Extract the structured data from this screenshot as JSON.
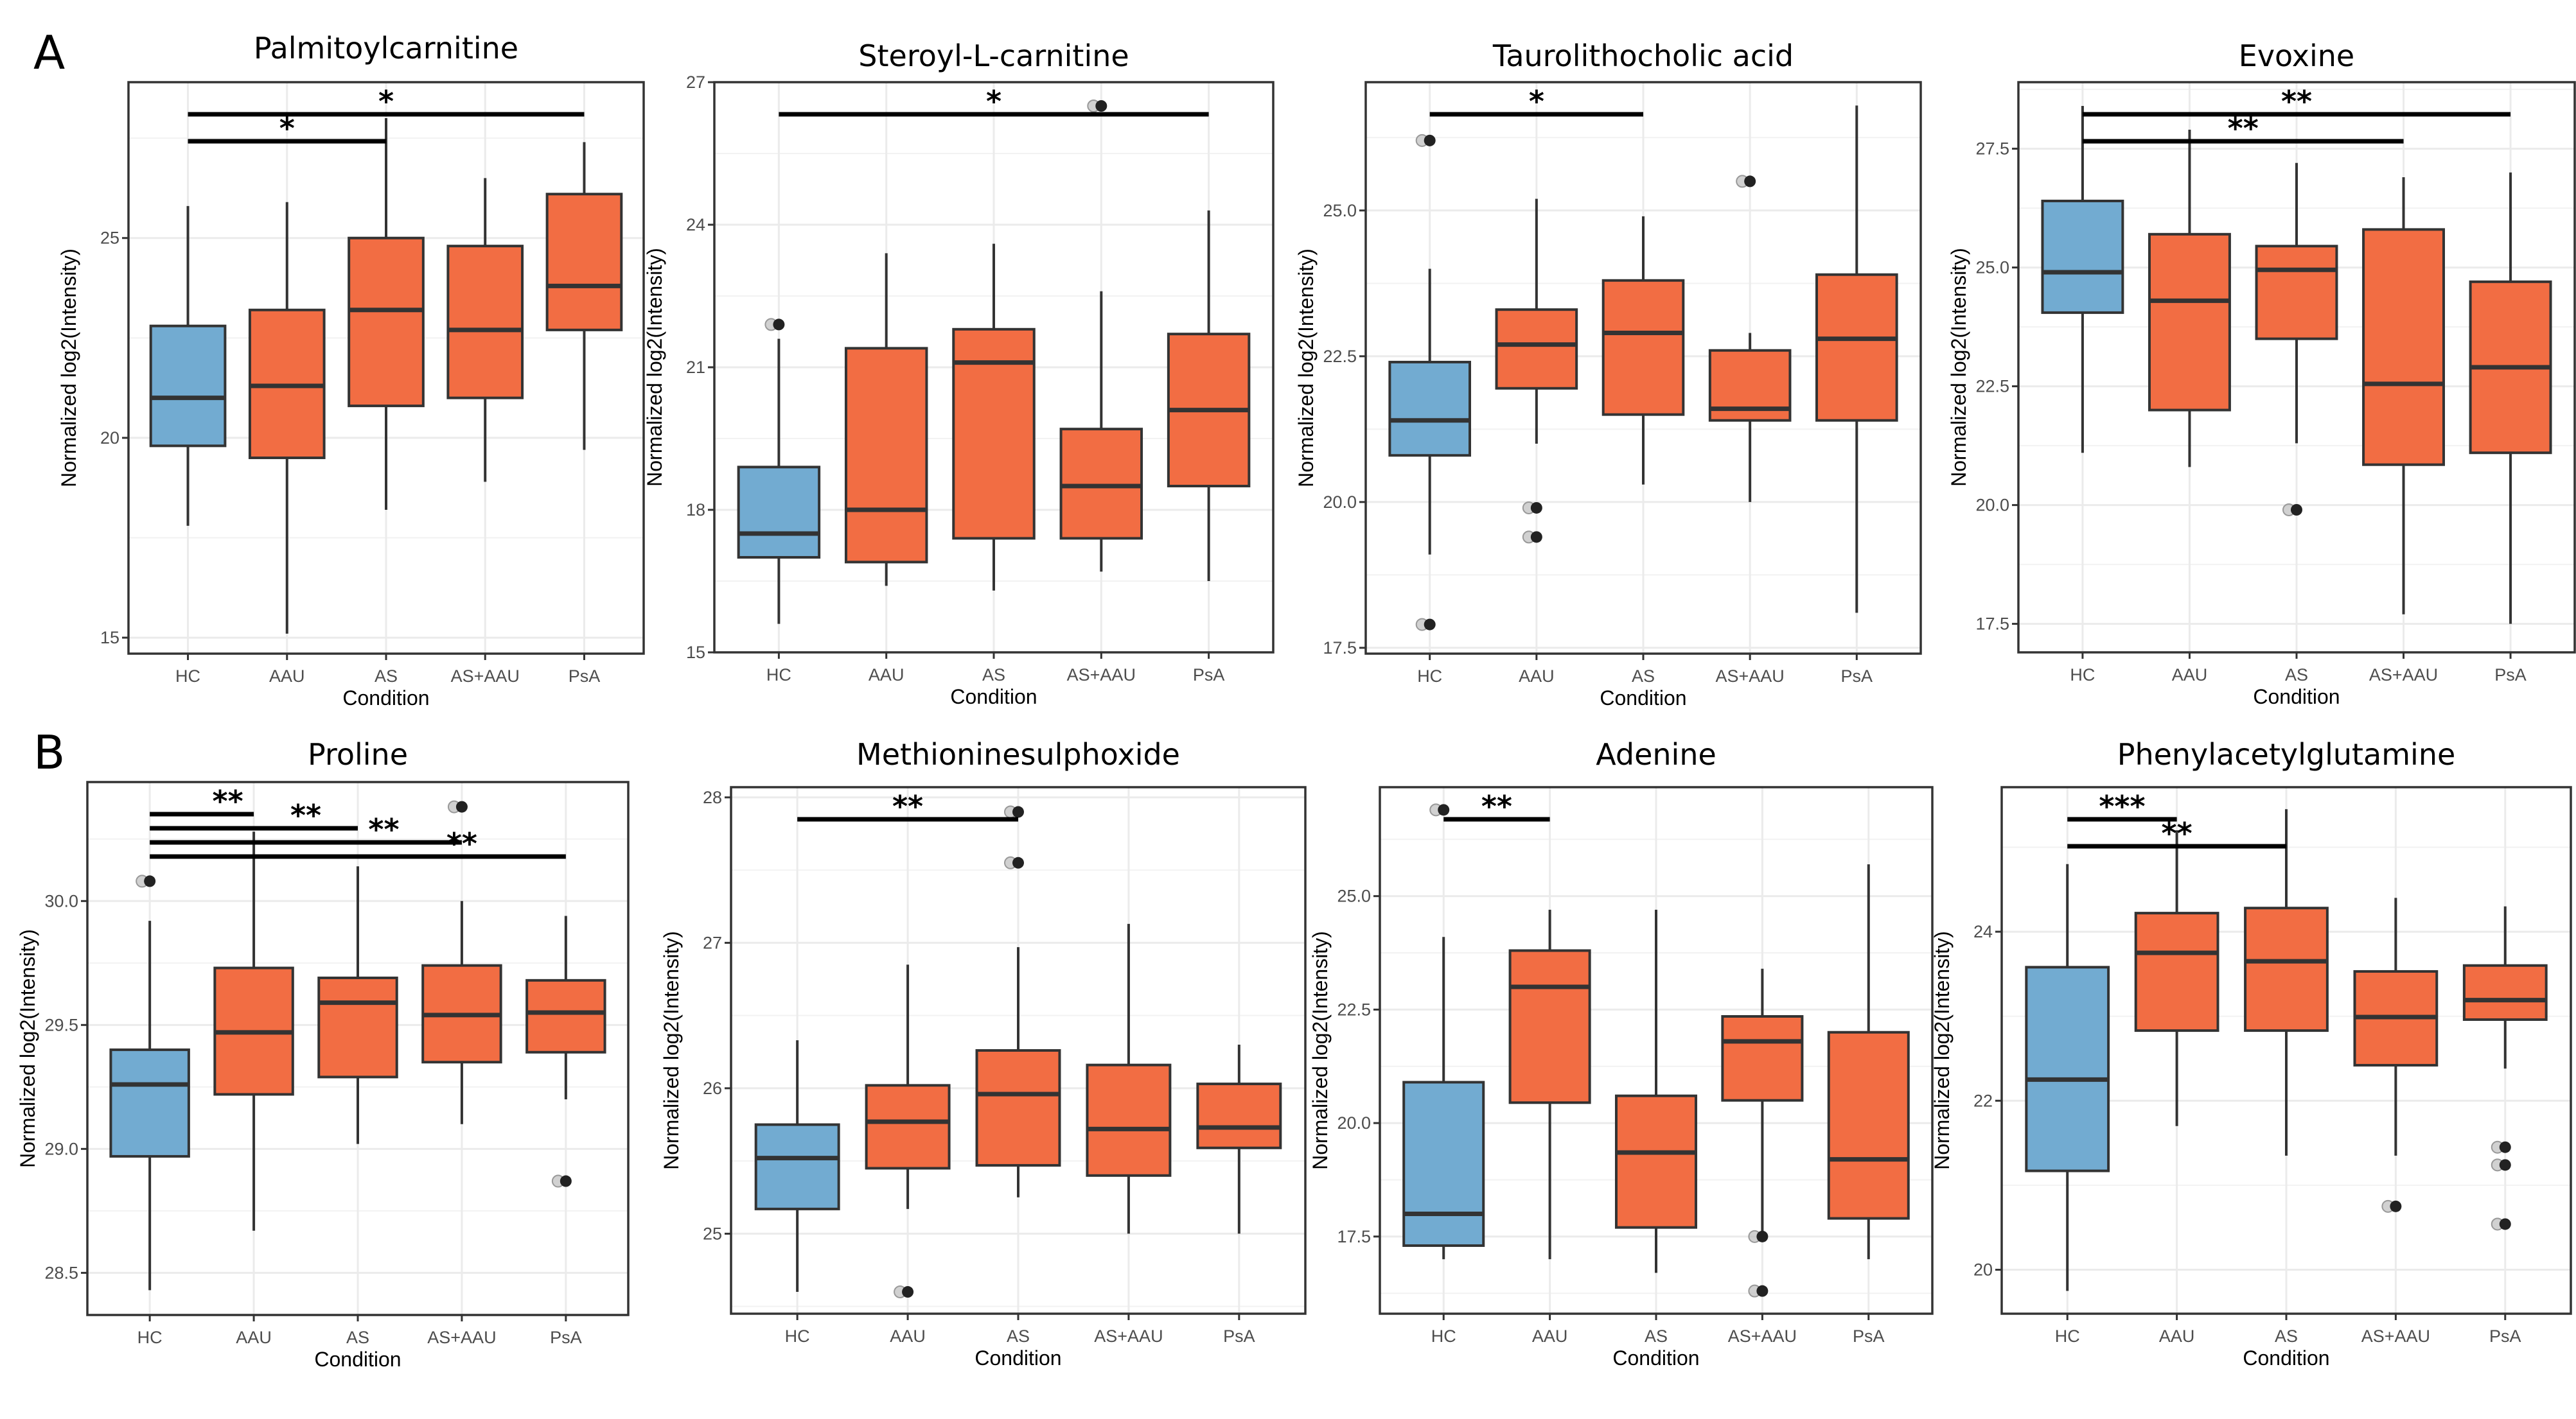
{
  "figure_labels": [
    "A",
    "B"
  ],
  "colors": {
    "HC": "#72ABD1",
    "disease": "#F26D43",
    "outline": "#333333",
    "grid": "#EBEBEB"
  },
  "chart_data": [
    {
      "type": "box",
      "title": "Palmitoylcarnitine",
      "xlabel": "Condition",
      "ylabel": "Normalized log2(Intensity)",
      "categories": [
        "HC",
        "AAU",
        "AS",
        "AS+AAU",
        "PsA"
      ],
      "ylim": [
        14.6,
        28.9
      ],
      "yticks": [
        15,
        20,
        25
      ],
      "ytick_labels": [
        "15",
        "20",
        "25"
      ],
      "boxes": [
        {
          "min": 17.8,
          "q1": 19.8,
          "median": 21.0,
          "q3": 22.8,
          "max": 25.8,
          "outliers": []
        },
        {
          "min": 15.1,
          "q1": 19.5,
          "median": 21.3,
          "q3": 23.2,
          "max": 25.9,
          "outliers": []
        },
        {
          "min": 18.2,
          "q1": 20.8,
          "median": 23.2,
          "q3": 25.0,
          "max": 28.0,
          "outliers": []
        },
        {
          "min": 18.9,
          "q1": 21.0,
          "median": 22.7,
          "q3": 24.8,
          "max": 26.5,
          "outliers": []
        },
        {
          "min": 19.7,
          "q1": 22.7,
          "median": 23.8,
          "q3": 26.1,
          "max": 27.4,
          "outliers": []
        }
      ],
      "significance": [
        {
          "from": "HC",
          "to": "AS",
          "label": "*"
        },
        {
          "from": "HC",
          "to": "PsA",
          "label": "*"
        }
      ]
    },
    {
      "type": "box",
      "title": "Steroyl-L-carnitine",
      "xlabel": "Condition",
      "ylabel": "Normalized log2(Intensity)",
      "categories": [
        "HC",
        "AAU",
        "AS",
        "AS+AAU",
        "PsA"
      ],
      "ylim": [
        15,
        27
      ],
      "yticks": [
        15,
        18,
        21,
        24,
        27
      ],
      "ytick_labels": [
        "15",
        "18",
        "21",
        "24",
        "27"
      ],
      "boxes": [
        {
          "min": 15.6,
          "q1": 17.0,
          "median": 17.5,
          "q3": 18.9,
          "max": 21.6,
          "outliers": [
            21.9
          ]
        },
        {
          "min": 16.4,
          "q1": 16.9,
          "median": 18.0,
          "q3": 21.4,
          "max": 23.4,
          "outliers": []
        },
        {
          "min": 16.3,
          "q1": 17.4,
          "median": 21.1,
          "q3": 21.8,
          "max": 23.6,
          "outliers": []
        },
        {
          "min": 16.7,
          "q1": 17.4,
          "median": 18.5,
          "q3": 19.7,
          "max": 22.6,
          "outliers": [
            26.5
          ]
        },
        {
          "min": 16.5,
          "q1": 18.5,
          "median": 20.1,
          "q3": 21.7,
          "max": 24.3,
          "outliers": []
        }
      ],
      "significance": [
        {
          "from": "HC",
          "to": "PsA",
          "label": "*"
        }
      ]
    },
    {
      "type": "box",
      "title": "Taurolithocholic acid",
      "xlabel": "Condition",
      "ylabel": "Normalized log2(Intensity)",
      "categories": [
        "HC",
        "AAU",
        "AS",
        "AS+AAU",
        "PsA"
      ],
      "ylim": [
        17.4,
        27.2
      ],
      "yticks": [
        17.5,
        20.0,
        22.5,
        25.0
      ],
      "ytick_labels": [
        "17.5",
        "20.0",
        "22.5",
        "25.0"
      ],
      "boxes": [
        {
          "min": 19.1,
          "q1": 20.8,
          "median": 21.4,
          "q3": 22.4,
          "max": 24.0,
          "outliers": [
            26.2,
            17.9
          ]
        },
        {
          "min": 21.0,
          "q1": 21.95,
          "median": 22.7,
          "q3": 23.3,
          "max": 25.2,
          "outliers": [
            19.9,
            19.4
          ]
        },
        {
          "min": 20.3,
          "q1": 21.5,
          "median": 22.9,
          "q3": 23.8,
          "max": 24.9,
          "outliers": []
        },
        {
          "min": 20.0,
          "q1": 21.4,
          "median": 21.6,
          "q3": 22.6,
          "max": 22.9,
          "outliers": [
            25.5
          ]
        },
        {
          "min": 18.1,
          "q1": 21.4,
          "median": 22.8,
          "q3": 23.9,
          "max": 26.8,
          "outliers": []
        }
      ],
      "significance": [
        {
          "from": "HC",
          "to": "AS",
          "label": "*"
        }
      ]
    },
    {
      "type": "box",
      "title": "Evoxine",
      "xlabel": "Condition",
      "ylabel": "Normalized log2(Intensity)",
      "categories": [
        "HC",
        "AAU",
        "AS",
        "AS+AAU",
        "PsA"
      ],
      "ylim": [
        16.9,
        28.9
      ],
      "yticks": [
        17.5,
        20.0,
        22.5,
        25.0,
        27.5
      ],
      "ytick_labels": [
        "17.5",
        "20.0",
        "22.5",
        "25.0",
        "27.5"
      ],
      "boxes": [
        {
          "min": 21.1,
          "q1": 24.05,
          "median": 24.9,
          "q3": 26.4,
          "max": 28.4,
          "outliers": []
        },
        {
          "min": 20.8,
          "q1": 22.0,
          "median": 24.3,
          "q3": 25.7,
          "max": 27.9,
          "outliers": []
        },
        {
          "min": 21.3,
          "q1": 23.5,
          "median": 24.95,
          "q3": 25.45,
          "max": 27.2,
          "outliers": [
            19.9
          ]
        },
        {
          "min": 17.7,
          "q1": 20.85,
          "median": 22.55,
          "q3": 25.8,
          "max": 26.9,
          "outliers": []
        },
        {
          "min": 17.5,
          "q1": 21.1,
          "median": 22.9,
          "q3": 24.7,
          "max": 27.0,
          "outliers": []
        }
      ],
      "significance": [
        {
          "from": "HC",
          "to": "AS+AAU",
          "label": "**"
        },
        {
          "from": "HC",
          "to": "PsA",
          "label": "**"
        }
      ]
    },
    {
      "type": "box",
      "title": "Proline",
      "xlabel": "Condition",
      "ylabel": "Normalized log2(Intensity)",
      "categories": [
        "HC",
        "AAU",
        "AS",
        "AS+AAU",
        "PsA"
      ],
      "ylim": [
        28.33,
        30.48
      ],
      "yticks": [
        28.5,
        29.0,
        29.5,
        30.0
      ],
      "ytick_labels": [
        "28.5",
        "29.0",
        "29.5",
        "30.0"
      ],
      "boxes": [
        {
          "min": 28.43,
          "q1": 28.97,
          "median": 29.26,
          "q3": 29.4,
          "max": 29.92,
          "outliers": [
            30.08
          ]
        },
        {
          "min": 28.67,
          "q1": 29.22,
          "median": 29.47,
          "q3": 29.73,
          "max": 30.28,
          "outliers": []
        },
        {
          "min": 29.02,
          "q1": 29.29,
          "median": 29.59,
          "q3": 29.69,
          "max": 30.14,
          "outliers": []
        },
        {
          "min": 29.1,
          "q1": 29.35,
          "median": 29.54,
          "q3": 29.74,
          "max": 30.0,
          "outliers": [
            30.38
          ]
        },
        {
          "min": 29.2,
          "q1": 29.39,
          "median": 29.55,
          "q3": 29.68,
          "max": 29.94,
          "outliers": [
            28.87
          ]
        }
      ],
      "significance": [
        {
          "from": "HC",
          "to": "AAU",
          "label": "**"
        },
        {
          "from": "HC",
          "to": "AS",
          "label": "**"
        },
        {
          "from": "HC",
          "to": "AS+AAU",
          "label": "**"
        },
        {
          "from": "HC",
          "to": "PsA",
          "label": "**"
        }
      ]
    },
    {
      "type": "box",
      "title": "Methioninesulphoxide",
      "xlabel": "Condition",
      "ylabel": "Normalized log2(Intensity)",
      "categories": [
        "HC",
        "AAU",
        "AS",
        "AS+AAU",
        "PsA"
      ],
      "ylim": [
        24.45,
        28.07
      ],
      "yticks": [
        25,
        26,
        27,
        28
      ],
      "ytick_labels": [
        "25",
        "26",
        "27",
        "28"
      ],
      "boxes": [
        {
          "min": 24.6,
          "q1": 25.17,
          "median": 25.52,
          "q3": 25.75,
          "max": 26.33,
          "outliers": []
        },
        {
          "min": 25.17,
          "q1": 25.45,
          "median": 25.77,
          "q3": 26.02,
          "max": 26.85,
          "outliers": [
            24.6
          ]
        },
        {
          "min": 25.25,
          "q1": 25.47,
          "median": 25.96,
          "q3": 26.26,
          "max": 26.97,
          "outliers": [
            27.9,
            27.55
          ]
        },
        {
          "min": 25.0,
          "q1": 25.4,
          "median": 25.72,
          "q3": 26.16,
          "max": 27.13,
          "outliers": []
        },
        {
          "min": 25.0,
          "q1": 25.59,
          "median": 25.73,
          "q3": 26.03,
          "max": 26.3,
          "outliers": []
        }
      ],
      "significance": [
        {
          "from": "HC",
          "to": "AS",
          "label": "**"
        }
      ]
    },
    {
      "type": "box",
      "title": "Adenine",
      "xlabel": "Condition",
      "ylabel": "Normalized log2(Intensity)",
      "categories": [
        "HC",
        "AAU",
        "AS",
        "AS+AAU",
        "PsA"
      ],
      "ylim": [
        15.8,
        27.4
      ],
      "yticks": [
        17.5,
        20.0,
        22.5,
        25.0
      ],
      "ytick_labels": [
        "17.5",
        "20.0",
        "22.5",
        "25.0"
      ],
      "boxes": [
        {
          "min": 17.0,
          "q1": 17.3,
          "median": 18.0,
          "q3": 20.9,
          "max": 24.1,
          "outliers": [
            26.9
          ]
        },
        {
          "min": 17.0,
          "q1": 20.45,
          "median": 23.0,
          "q3": 23.8,
          "max": 24.7,
          "outliers": []
        },
        {
          "min": 16.7,
          "q1": 17.7,
          "median": 19.35,
          "q3": 20.6,
          "max": 24.7,
          "outliers": []
        },
        {
          "min": 17.5,
          "q1": 20.5,
          "median": 21.8,
          "q3": 22.35,
          "max": 23.4,
          "outliers": [
            17.5,
            16.3
          ]
        },
        {
          "min": 17.0,
          "q1": 17.9,
          "median": 19.2,
          "q3": 22.0,
          "max": 25.7,
          "outliers": []
        }
      ],
      "significance": [
        {
          "from": "HC",
          "to": "AAU",
          "label": "**"
        }
      ]
    },
    {
      "type": "box",
      "title": "Phenylacetylglutamine",
      "xlabel": "Condition",
      "ylabel": "Normalized log2(Intensity)",
      "categories": [
        "HC",
        "AAU",
        "AS",
        "AS+AAU",
        "PsA"
      ],
      "ylim": [
        19.48,
        25.71
      ],
      "yticks": [
        20,
        22,
        24
      ],
      "ytick_labels": [
        "20",
        "22",
        "24"
      ],
      "boxes": [
        {
          "min": 19.75,
          "q1": 21.17,
          "median": 22.25,
          "q3": 23.58,
          "max": 24.8,
          "outliers": []
        },
        {
          "min": 21.7,
          "q1": 22.83,
          "median": 23.75,
          "q3": 24.22,
          "max": 25.2,
          "outliers": []
        },
        {
          "min": 21.35,
          "q1": 22.83,
          "median": 23.65,
          "q3": 24.28,
          "max": 25.45,
          "outliers": []
        },
        {
          "min": 21.35,
          "q1": 22.42,
          "median": 22.99,
          "q3": 23.53,
          "max": 24.4,
          "outliers": [
            20.75
          ]
        },
        {
          "min": 22.38,
          "q1": 22.96,
          "median": 23.19,
          "q3": 23.6,
          "max": 24.3,
          "outliers": [
            21.45,
            21.24,
            20.54
          ]
        }
      ],
      "significance": [
        {
          "from": "HC",
          "to": "AS",
          "label": "**"
        },
        {
          "from": "HC",
          "to": "AAU",
          "label": "***"
        }
      ]
    }
  ]
}
